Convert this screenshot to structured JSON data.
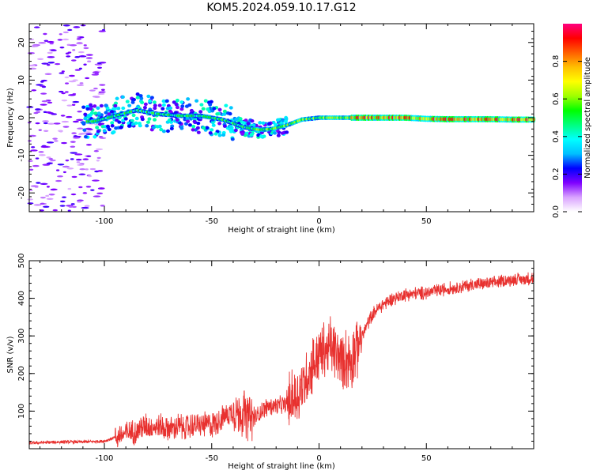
{
  "title": "KOM5.2024.059.10.17.G12",
  "chart_data": [
    {
      "type": "heatmap",
      "xlabel": "Height of straight line (km)",
      "ylabel": "Frequency (Hz)",
      "xlim": [
        -135,
        100
      ],
      "ylim": [
        -25,
        25
      ],
      "xticks": [
        -100,
        -50,
        0,
        50
      ],
      "yticks": [
        -20,
        -10,
        0,
        10,
        20
      ],
      "colorbar": {
        "label": "Normalized spectral amplitude",
        "ticks": [
          0.0,
          0.2,
          0.4,
          0.6,
          0.8
        ],
        "range": [
          0,
          1
        ],
        "colormap": [
          "#ffffff",
          "#d9a3ff",
          "#7f00ff",
          "#0000ff",
          "#00bfff",
          "#00ffff",
          "#00ff7f",
          "#00ff00",
          "#9fff00",
          "#ffff00",
          "#ffbf00",
          "#ff5f00",
          "#ff0000",
          "#ff007f"
        ]
      },
      "ridge": {
        "x": [
          -105,
          -95,
          -85,
          -75,
          -65,
          -55,
          -45,
          -35,
          -28,
          -22,
          -15,
          -8,
          0,
          10,
          20,
          30,
          40,
          50,
          60,
          70,
          80,
          90,
          100
        ],
        "freq": [
          -1,
          0.5,
          2,
          1,
          0.5,
          0.5,
          -0.5,
          -2.5,
          -3.2,
          -3,
          -2,
          -0.5,
          0,
          0,
          0,
          0,
          0,
          -0.3,
          -0.4,
          -0.4,
          -0.4,
          -0.5,
          -0.5
        ]
      },
      "noise_region": {
        "x": [
          -135,
          -100
        ],
        "freq": [
          -25,
          25
        ]
      }
    },
    {
      "type": "line",
      "xlabel": "Height of straight line (km)",
      "ylabel": "SNR (v/v)",
      "xlim": [
        -135,
        100
      ],
      "ylim": [
        0,
        500
      ],
      "xticks": [
        -100,
        -50,
        0,
        50
      ],
      "yticks": [
        100,
        200,
        300,
        400,
        500
      ],
      "color": "#e8312f",
      "series": [
        {
          "x": [
            -135,
            -120,
            -110,
            -100,
            -90,
            -80,
            -70,
            -60,
            -50,
            -40,
            -35,
            -30,
            -25,
            -20,
            -15,
            -10,
            -5,
            0,
            5,
            10,
            15,
            20,
            25,
            30,
            35,
            40,
            50,
            60,
            70,
            80,
            90,
            95,
            100
          ],
          "values": [
            15,
            18,
            18,
            20,
            40,
            60,
            55,
            60,
            65,
            100,
            90,
            80,
            110,
            115,
            120,
            135,
            200,
            255,
            270,
            240,
            240,
            300,
            360,
            385,
            400,
            410,
            415,
            425,
            435,
            440,
            450,
            450,
            455
          ]
        }
      ]
    }
  ]
}
